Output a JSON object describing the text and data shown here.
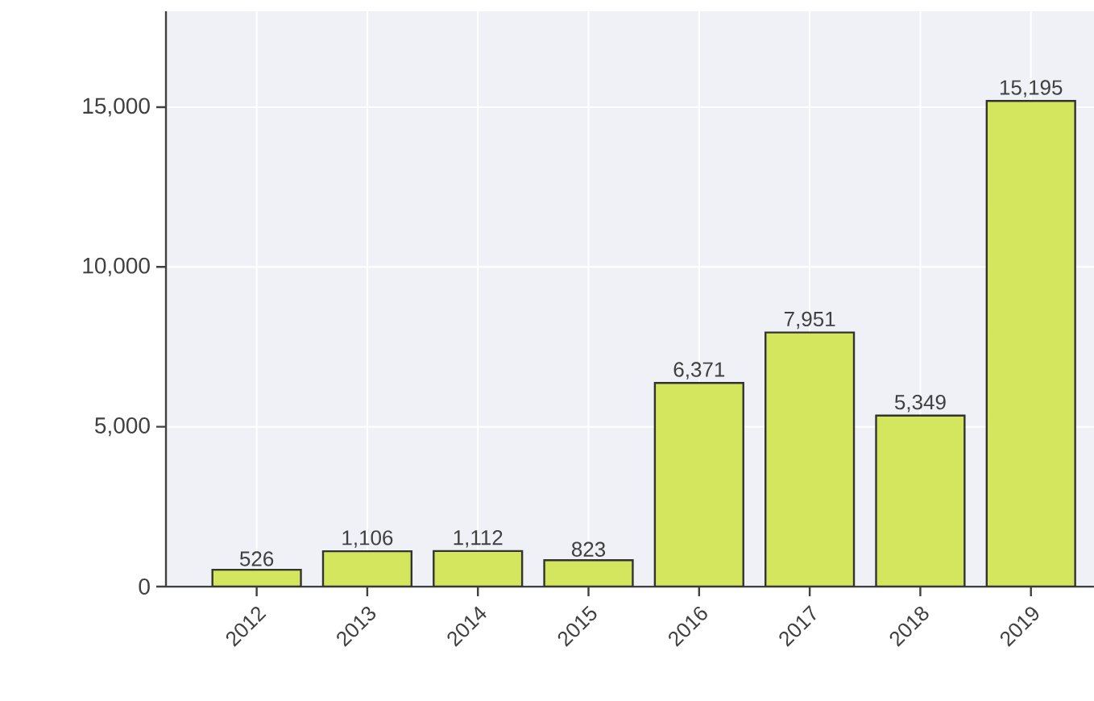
{
  "chart_data": {
    "type": "bar",
    "categories": [
      "2012",
      "2013",
      "2014",
      "2015",
      "2016",
      "2017",
      "2018",
      "2019"
    ],
    "values": [
      526,
      1106,
      1112,
      823,
      6371,
      7951,
      5349,
      15195
    ],
    "value_labels": [
      "526",
      "1,106",
      "1,112",
      "823",
      "6,371",
      "7,951",
      "5,349",
      "15,195"
    ],
    "color": "#d4e65e",
    "ylim": [
      0,
      18000
    ],
    "yticks": [
      {
        "value": 0,
        "label": "0"
      },
      {
        "value": 5000,
        "label": "5,000"
      },
      {
        "value": 10000,
        "label": "10,000"
      },
      {
        "value": 15000,
        "label": "15,000"
      }
    ],
    "grid": true
  }
}
